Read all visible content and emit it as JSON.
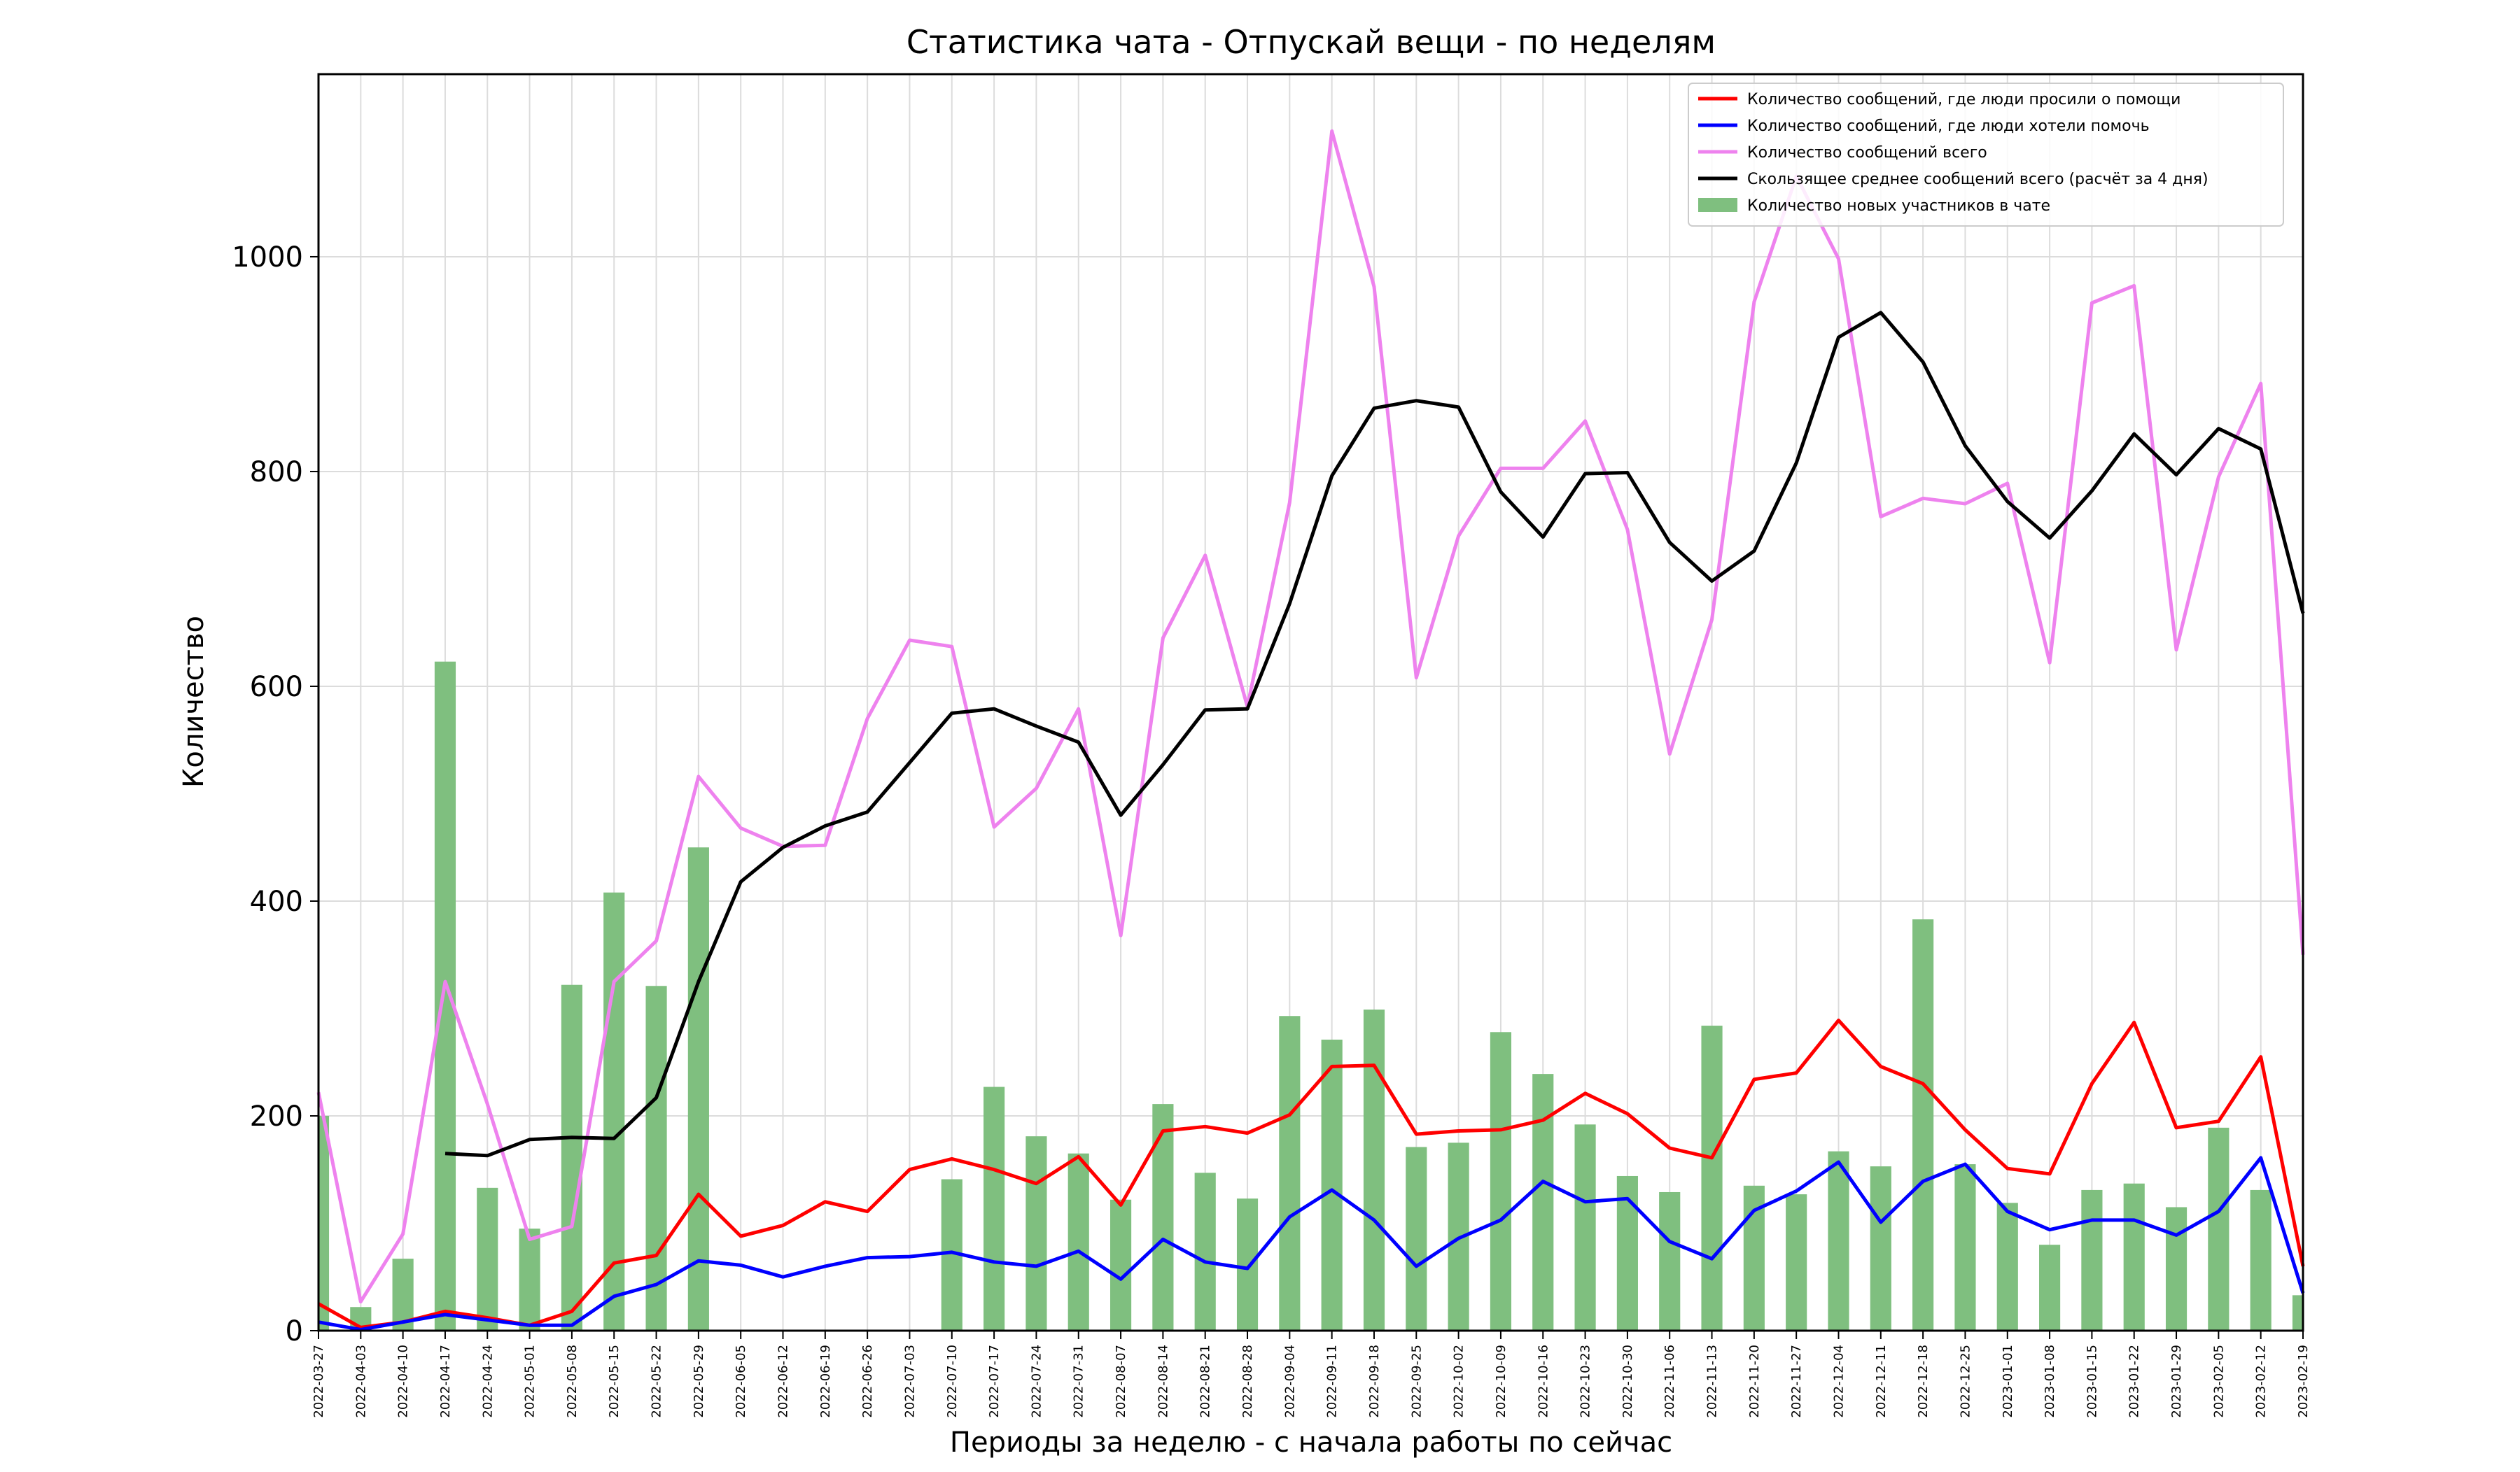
{
  "chart_data": {
    "type": "line",
    "title": "Статистика чата - Отпускай вещи - по неделям",
    "xlabel": "Периоды за неделю - с начала работы по сейчас",
    "ylabel": "Количество",
    "ylim": [
      0,
      1170
    ],
    "yticks": [
      0,
      200,
      400,
      600,
      800,
      1000
    ],
    "grid": true,
    "legend_position": "top-right",
    "categories": [
      "2022-03-27",
      "2022-04-03",
      "2022-04-10",
      "2022-04-17",
      "2022-04-24",
      "2022-05-01",
      "2022-05-08",
      "2022-05-15",
      "2022-05-22",
      "2022-05-29",
      "2022-06-05",
      "2022-06-12",
      "2022-06-19",
      "2022-06-26",
      "2022-07-03",
      "2022-07-10",
      "2022-07-17",
      "2022-07-24",
      "2022-07-31",
      "2022-08-07",
      "2022-08-14",
      "2022-08-21",
      "2022-08-28",
      "2022-09-04",
      "2022-09-11",
      "2022-09-18",
      "2022-09-25",
      "2022-10-02",
      "2022-10-09",
      "2022-10-16",
      "2022-10-23",
      "2022-10-30",
      "2022-11-06",
      "2022-11-13",
      "2022-11-20",
      "2022-11-27",
      "2022-12-04",
      "2022-12-11",
      "2022-12-18",
      "2022-12-25",
      "2023-01-01",
      "2023-01-08",
      "2023-01-15",
      "2023-01-22",
      "2023-01-29",
      "2023-02-05",
      "2023-02-12",
      "2023-02-19"
    ],
    "bars": {
      "name": "Количество новых участников в чате",
      "color": "#7fbf7f",
      "values": [
        200,
        22,
        67,
        623,
        133,
        95,
        322,
        408,
        321,
        450,
        0,
        0,
        0,
        0,
        0,
        141,
        227,
        181,
        165,
        122,
        211,
        147,
        123,
        293,
        271,
        299,
        171,
        175,
        278,
        239,
        192,
        144,
        129,
        284,
        135,
        127,
        167,
        153,
        383,
        155,
        119,
        80,
        131,
        137,
        115,
        189,
        131,
        33
      ]
    },
    "series": [
      {
        "name": "Количество сообщений, где люди просили о помощи",
        "color": "#ff0000",
        "values": [
          25,
          3,
          8,
          18,
          12,
          5,
          18,
          63,
          70,
          127,
          88,
          98,
          120,
          111,
          150,
          160,
          150,
          137,
          162,
          117,
          186,
          190,
          184,
          201,
          246,
          247,
          183,
          186,
          187,
          196,
          221,
          202,
          170,
          161,
          234,
          240,
          289,
          246,
          230,
          187,
          151,
          146,
          230,
          287,
          189,
          195,
          255,
          60
        ]
      },
      {
        "name": "Количество сообщений, где люди хотели помочь",
        "color": "#0000ff",
        "values": [
          8,
          1,
          8,
          15,
          10,
          5,
          5,
          32,
          43,
          65,
          61,
          50,
          60,
          68,
          69,
          73,
          64,
          60,
          74,
          48,
          85,
          64,
          58,
          106,
          131,
          103,
          60,
          86,
          103,
          139,
          120,
          123,
          83,
          67,
          112,
          130,
          157,
          101,
          139,
          155,
          111,
          94,
          103,
          103,
          89,
          111,
          161,
          35
        ]
      },
      {
        "name": "Количество сообщений всего",
        "color": "#ee82ee",
        "values": [
          222,
          27,
          90,
          325,
          211,
          85,
          97,
          325,
          363,
          516,
          468,
          451,
          452,
          570,
          643,
          637,
          469,
          505,
          579,
          368,
          645,
          722,
          581,
          771,
          1117,
          972,
          608,
          740,
          803,
          803,
          847,
          746,
          537,
          662,
          958,
          1075,
          998,
          758,
          775,
          770,
          789,
          622,
          957,
          973,
          634,
          795,
          882,
          350
        ]
      },
      {
        "name": "Скользящее среднее сообщений всего (расчёт за 4 дня)",
        "color": "#000000",
        "values": [
          null,
          null,
          null,
          165,
          163,
          178,
          180,
          179,
          217,
          325,
          418,
          450,
          470,
          483,
          529,
          575,
          579,
          563,
          548,
          480,
          527,
          578,
          579,
          677,
          796,
          859,
          866,
          860,
          781,
          739,
          798,
          799,
          734,
          698,
          726,
          808,
          925,
          948,
          902,
          824,
          772,
          738,
          782,
          835,
          797,
          840,
          821,
          668
        ]
      }
    ]
  }
}
